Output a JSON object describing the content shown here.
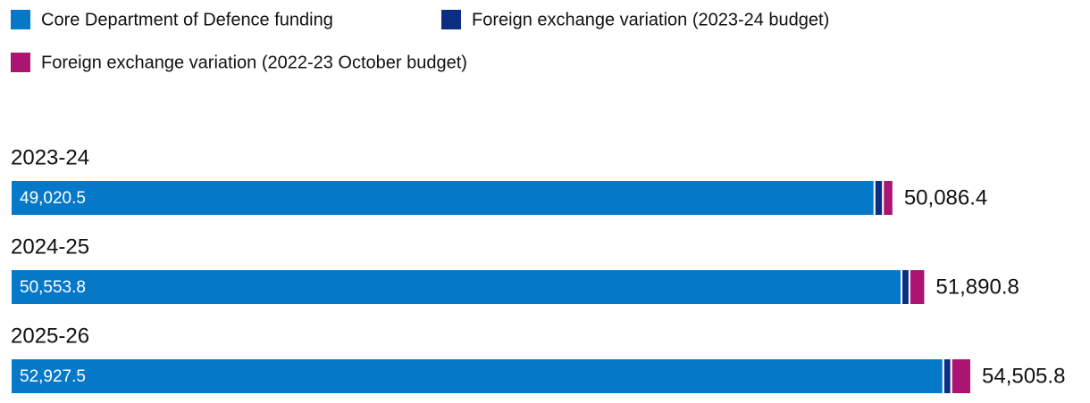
{
  "chart_data": {
    "type": "stacked-bar-horizontal",
    "categories": [
      "2023-24",
      "2024-25",
      "2025-26"
    ],
    "series": [
      {
        "name": "Core Department of Defence funding",
        "color": "#0678c8",
        "values": [
          49020.5,
          50553.8,
          52927.5
        ],
        "value_labels": [
          "49,020.5",
          "50,553.8",
          "52,927.5"
        ]
      },
      {
        "name": "Foreign exchange variation (2023-24 budget)",
        "color": "#0b2d82",
        "values": [
          480,
          450,
          450
        ]
      },
      {
        "name": "Foreign exchange variation (2022-23 October budget)",
        "color": "#ab1470",
        "values": [
          585.9,
          887,
          1128.3
        ]
      }
    ],
    "total_values": [
      50086.4,
      51890.8,
      54505.8
    ],
    "total_labels": [
      "50,086.4",
      "51,890.8",
      "54,505.8"
    ]
  }
}
